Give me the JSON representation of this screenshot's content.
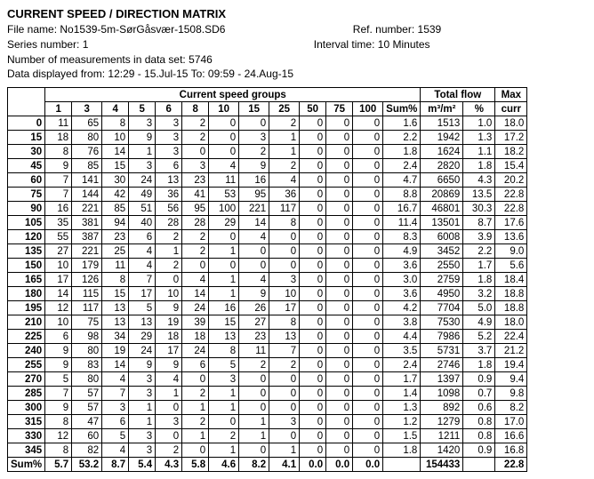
{
  "title": "CURRENT SPEED / DIRECTION MATRIX",
  "meta": {
    "file_label": "File name:",
    "file_value": "No1539-5m-SørGåsvær-1508.SD6",
    "ref_label": "Ref. number:",
    "ref_value": "1539",
    "series_label": "Series number:",
    "series_value": "1",
    "interval_label": "Interval time:",
    "interval_value": "10 Minutes",
    "nmeas_label": "Number of measurements in data set:",
    "nmeas_value": "5746",
    "range_label": "Data displayed from:",
    "range_value": "12:29 - 15.Jul-15  To: 09:59 - 24.Aug-15"
  },
  "headers": {
    "speed_groups_label": "Current speed groups",
    "total_flow_label": "Total flow",
    "max_label": "Max",
    "speed_cols": [
      "1",
      "3",
      "4",
      "5",
      "6",
      "8",
      "10",
      "15",
      "25",
      "50",
      "75",
      "100"
    ],
    "sum_pct_label": "Sum%",
    "flow_label": "m³/m²",
    "pct_label": "%",
    "max_curr_label": "curr",
    "sum_row_label": "Sum%"
  },
  "rows": [
    {
      "dir": "0",
      "v": [
        "11",
        "65",
        "8",
        "3",
        "3",
        "2",
        "0",
        "0",
        "2",
        "0",
        "0",
        "0"
      ],
      "sum": "1.6",
      "flow": "1513",
      "pct": "1.0",
      "max": "18.0"
    },
    {
      "dir": "15",
      "v": [
        "18",
        "80",
        "10",
        "9",
        "3",
        "2",
        "0",
        "3",
        "1",
        "0",
        "0",
        "0"
      ],
      "sum": "2.2",
      "flow": "1942",
      "pct": "1.3",
      "max": "17.2"
    },
    {
      "dir": "30",
      "v": [
        "8",
        "76",
        "14",
        "1",
        "3",
        "0",
        "0",
        "2",
        "1",
        "0",
        "0",
        "0"
      ],
      "sum": "1.8",
      "flow": "1624",
      "pct": "1.1",
      "max": "18.2"
    },
    {
      "dir": "45",
      "v": [
        "9",
        "85",
        "15",
        "3",
        "6",
        "3",
        "4",
        "9",
        "2",
        "0",
        "0",
        "0"
      ],
      "sum": "2.4",
      "flow": "2820",
      "pct": "1.8",
      "max": "15.4"
    },
    {
      "dir": "60",
      "v": [
        "7",
        "141",
        "30",
        "24",
        "13",
        "23",
        "11",
        "16",
        "4",
        "0",
        "0",
        "0"
      ],
      "sum": "4.7",
      "flow": "6650",
      "pct": "4.3",
      "max": "20.2"
    },
    {
      "dir": "75",
      "v": [
        "7",
        "144",
        "42",
        "49",
        "36",
        "41",
        "53",
        "95",
        "36",
        "0",
        "0",
        "0"
      ],
      "sum": "8.8",
      "flow": "20869",
      "pct": "13.5",
      "max": "22.8"
    },
    {
      "dir": "90",
      "v": [
        "16",
        "221",
        "85",
        "51",
        "56",
        "95",
        "100",
        "221",
        "117",
        "0",
        "0",
        "0"
      ],
      "sum": "16.7",
      "flow": "46801",
      "pct": "30.3",
      "max": "22.8"
    },
    {
      "dir": "105",
      "v": [
        "35",
        "381",
        "94",
        "40",
        "28",
        "28",
        "29",
        "14",
        "8",
        "0",
        "0",
        "0"
      ],
      "sum": "11.4",
      "flow": "13501",
      "pct": "8.7",
      "max": "17.6"
    },
    {
      "dir": "120",
      "v": [
        "55",
        "387",
        "23",
        "6",
        "2",
        "2",
        "0",
        "4",
        "0",
        "0",
        "0",
        "0"
      ],
      "sum": "8.3",
      "flow": "6008",
      "pct": "3.9",
      "max": "13.6"
    },
    {
      "dir": "135",
      "v": [
        "27",
        "221",
        "25",
        "4",
        "1",
        "2",
        "1",
        "0",
        "0",
        "0",
        "0",
        "0"
      ],
      "sum": "4.9",
      "flow": "3452",
      "pct": "2.2",
      "max": "9.0"
    },
    {
      "dir": "150",
      "v": [
        "10",
        "179",
        "11",
        "4",
        "2",
        "0",
        "0",
        "0",
        "0",
        "0",
        "0",
        "0"
      ],
      "sum": "3.6",
      "flow": "2550",
      "pct": "1.7",
      "max": "5.6"
    },
    {
      "dir": "165",
      "v": [
        "17",
        "126",
        "8",
        "7",
        "0",
        "4",
        "1",
        "4",
        "3",
        "0",
        "0",
        "0"
      ],
      "sum": "3.0",
      "flow": "2759",
      "pct": "1.8",
      "max": "18.4"
    },
    {
      "dir": "180",
      "v": [
        "14",
        "115",
        "15",
        "17",
        "10",
        "14",
        "1",
        "9",
        "10",
        "0",
        "0",
        "0"
      ],
      "sum": "3.6",
      "flow": "4950",
      "pct": "3.2",
      "max": "18.8"
    },
    {
      "dir": "195",
      "v": [
        "12",
        "117",
        "13",
        "5",
        "9",
        "24",
        "16",
        "26",
        "17",
        "0",
        "0",
        "0"
      ],
      "sum": "4.2",
      "flow": "7704",
      "pct": "5.0",
      "max": "18.8"
    },
    {
      "dir": "210",
      "v": [
        "10",
        "75",
        "13",
        "13",
        "19",
        "39",
        "15",
        "27",
        "8",
        "0",
        "0",
        "0"
      ],
      "sum": "3.8",
      "flow": "7530",
      "pct": "4.9",
      "max": "18.0"
    },
    {
      "dir": "225",
      "v": [
        "6",
        "98",
        "34",
        "29",
        "18",
        "18",
        "13",
        "23",
        "13",
        "0",
        "0",
        "0"
      ],
      "sum": "4.4",
      "flow": "7986",
      "pct": "5.2",
      "max": "22.4"
    },
    {
      "dir": "240",
      "v": [
        "9",
        "80",
        "19",
        "24",
        "17",
        "24",
        "8",
        "11",
        "7",
        "0",
        "0",
        "0"
      ],
      "sum": "3.5",
      "flow": "5731",
      "pct": "3.7",
      "max": "21.2"
    },
    {
      "dir": "255",
      "v": [
        "9",
        "83",
        "14",
        "9",
        "9",
        "6",
        "5",
        "2",
        "2",
        "0",
        "0",
        "0"
      ],
      "sum": "2.4",
      "flow": "2746",
      "pct": "1.8",
      "max": "19.4"
    },
    {
      "dir": "270",
      "v": [
        "5",
        "80",
        "4",
        "3",
        "4",
        "0",
        "3",
        "0",
        "0",
        "0",
        "0",
        "0"
      ],
      "sum": "1.7",
      "flow": "1397",
      "pct": "0.9",
      "max": "9.4"
    },
    {
      "dir": "285",
      "v": [
        "7",
        "57",
        "7",
        "3",
        "1",
        "2",
        "1",
        "0",
        "0",
        "0",
        "0",
        "0"
      ],
      "sum": "1.4",
      "flow": "1098",
      "pct": "0.7",
      "max": "9.8"
    },
    {
      "dir": "300",
      "v": [
        "9",
        "57",
        "3",
        "1",
        "0",
        "1",
        "1",
        "0",
        "0",
        "0",
        "0",
        "0"
      ],
      "sum": "1.3",
      "flow": "892",
      "pct": "0.6",
      "max": "8.2"
    },
    {
      "dir": "315",
      "v": [
        "8",
        "47",
        "6",
        "1",
        "3",
        "2",
        "0",
        "1",
        "3",
        "0",
        "0",
        "0"
      ],
      "sum": "1.2",
      "flow": "1279",
      "pct": "0.8",
      "max": "17.0"
    },
    {
      "dir": "330",
      "v": [
        "12",
        "60",
        "5",
        "3",
        "0",
        "1",
        "2",
        "1",
        "0",
        "0",
        "0",
        "0"
      ],
      "sum": "1.5",
      "flow": "1211",
      "pct": "0.8",
      "max": "16.6"
    },
    {
      "dir": "345",
      "v": [
        "8",
        "82",
        "4",
        "3",
        "2",
        "0",
        "1",
        "0",
        "1",
        "0",
        "0",
        "0"
      ],
      "sum": "1.8",
      "flow": "1420",
      "pct": "0.9",
      "max": "16.8"
    }
  ],
  "sum_row": {
    "v": [
      "5.7",
      "53.2",
      "8.7",
      "5.4",
      "4.3",
      "5.8",
      "4.6",
      "8.2",
      "4.1",
      "0.0",
      "0.0",
      "0.0"
    ],
    "sum": "",
    "flow": "154433",
    "pct": "",
    "max": "22.8"
  }
}
